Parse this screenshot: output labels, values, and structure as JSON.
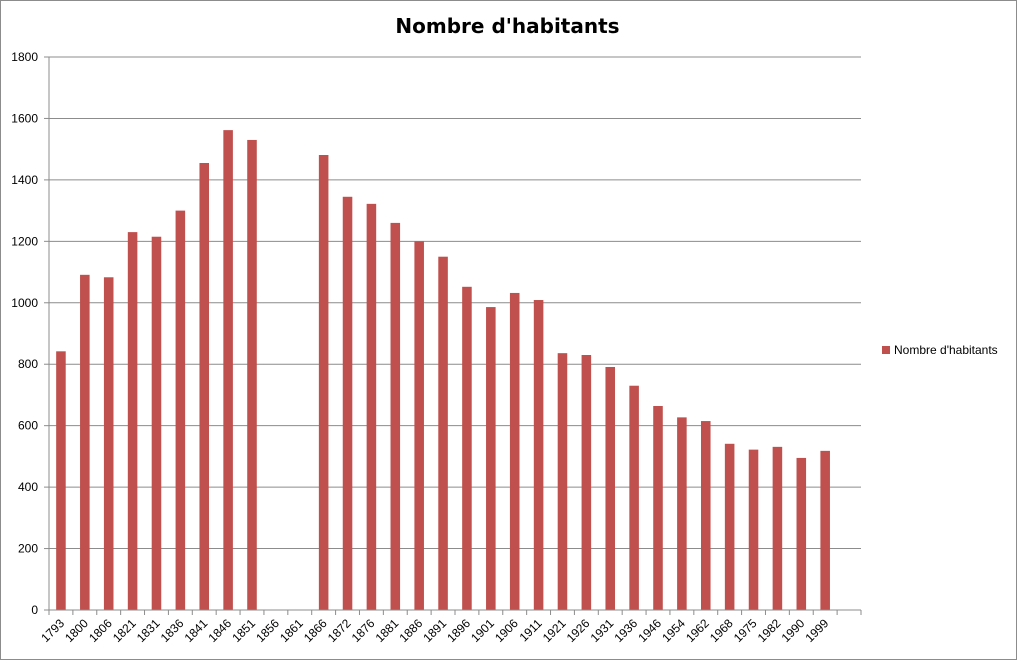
{
  "chart_data": {
    "type": "bar",
    "title": "Nombre d'habitants",
    "xlabel": "",
    "ylabel": "",
    "ylim": [
      0,
      1800
    ],
    "yticks": [
      "0",
      "200",
      "400",
      "600",
      "800",
      "1000",
      "1200",
      "1400",
      "1600",
      "1800"
    ],
    "grid": true,
    "legend_position": "right",
    "categories": [
      "1793",
      "1800",
      "1806",
      "1821",
      "1831",
      "1836",
      "1841",
      "1846",
      "1851",
      "1856",
      "1861",
      "1866",
      "1872",
      "1876",
      "1881",
      "1886",
      "1891",
      "1896",
      "1901",
      "1906",
      "1911",
      "1921",
      "1926",
      "1931",
      "1936",
      "1946",
      "1954",
      "1962",
      "1968",
      "1975",
      "1982",
      "1990",
      "1999",
      ""
    ],
    "series": [
      {
        "name": "Nombre d'habitants",
        "color": "#c0504d",
        "values": [
          842,
          1091,
          1083,
          1230,
          1215,
          1300,
          1455,
          1562,
          1530,
          null,
          null,
          1481,
          1345,
          1322,
          1260,
          1200,
          1150,
          1052,
          986,
          1032,
          1009,
          836,
          830,
          791,
          730,
          664,
          627,
          615,
          541,
          522,
          531,
          495,
          518,
          null
        ]
      }
    ]
  }
}
